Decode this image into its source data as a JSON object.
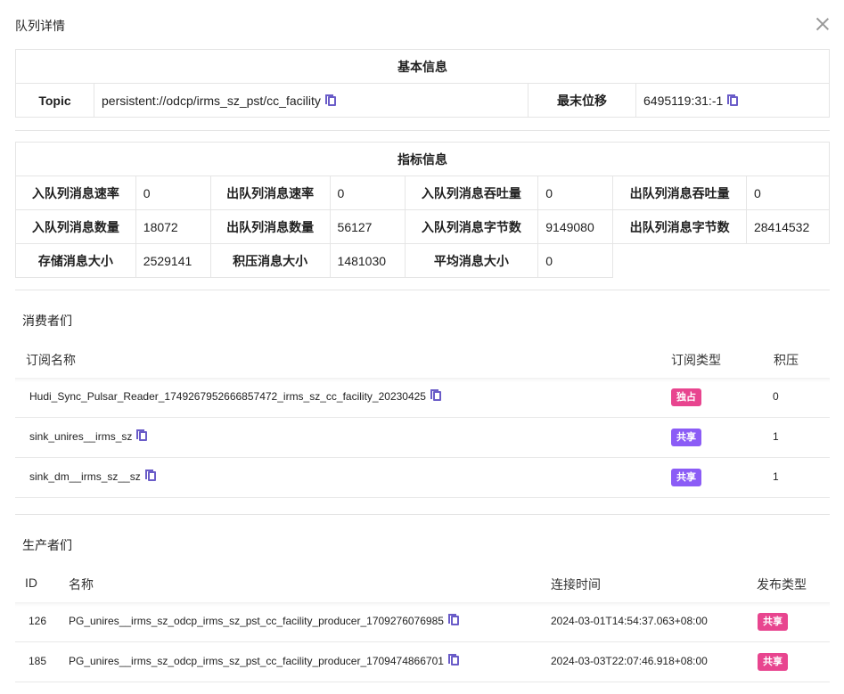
{
  "title": "队列详情",
  "basic": {
    "heading": "基本信息",
    "topic_label": "Topic",
    "topic_value": "persistent://odcp/irms_sz_pst/cc_facility",
    "offset_label": "最末位移",
    "offset_value": "6495119:31:-1"
  },
  "metrics": {
    "heading": "指标信息",
    "rows": [
      [
        [
          "入队列消息速率",
          "0"
        ],
        [
          "出队列消息速率",
          "0"
        ],
        [
          "入队列消息吞吐量",
          "0"
        ],
        [
          "出队列消息吞吐量",
          "0"
        ]
      ],
      [
        [
          "入队列消息数量",
          "18072"
        ],
        [
          "出队列消息数量",
          "56127"
        ],
        [
          "入队列消息字节数",
          "9149080"
        ],
        [
          "出队列消息字节数",
          "28414532"
        ]
      ],
      [
        [
          "存储消息大小",
          "2529141"
        ],
        [
          "积压消息大小",
          "1481030"
        ],
        [
          "平均消息大小",
          "0"
        ]
      ]
    ]
  },
  "consumers": {
    "heading": "消费者们",
    "columns": [
      "订阅名称",
      "订阅类型",
      "积压"
    ],
    "rows": [
      {
        "name": "Hudi_Sync_Pulsar_Reader_1749267952666857472_irms_sz_cc_facility_20230425",
        "type": "独占",
        "backlog": "0"
      },
      {
        "name": "sink_unires__irms_sz",
        "type": "共享",
        "backlog": "1"
      },
      {
        "name": "sink_dm__irms_sz__sz",
        "type": "共享",
        "backlog": "1"
      }
    ]
  },
  "producers": {
    "heading": "生产者们",
    "columns": [
      "ID",
      "名称",
      "连接时间",
      "发布类型"
    ],
    "rows": [
      {
        "id": "126",
        "name": "PG_unires__irms_sz_odcp_irms_sz_pst_cc_facility_producer_1709276076985",
        "time": "2024-03-01T14:54:37.063+08:00",
        "type": "共享"
      },
      {
        "id": "185",
        "name": "PG_unires__irms_sz_odcp_irms_sz_pst_cc_facility_producer_1709474866701",
        "time": "2024-03-03T22:07:46.918+08:00",
        "type": "共享"
      }
    ]
  },
  "colors": {
    "exclusive": "#e8458f",
    "shared_consumer": "#8b5cf6",
    "shared_producer": "#e8458f",
    "copy_icon": "#6a5cc8"
  }
}
